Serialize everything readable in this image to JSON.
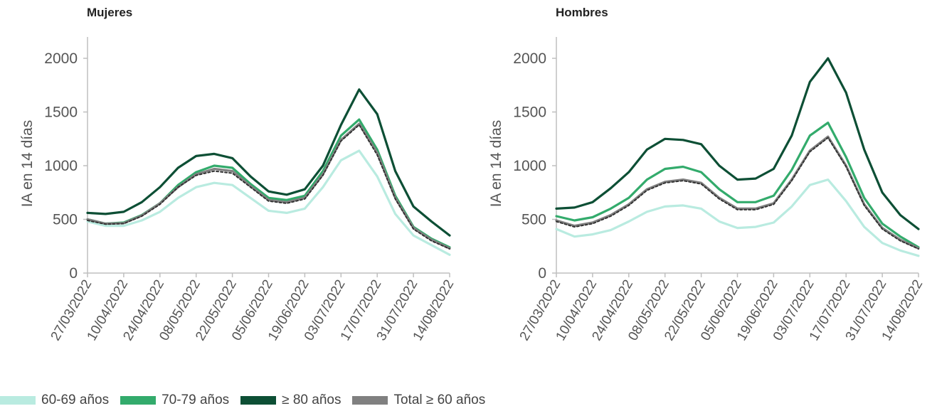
{
  "legend": [
    {
      "label": "60-69 años",
      "color": "#b9ebe0"
    },
    {
      "label": "70-79 años",
      "color": "#33ab6c"
    },
    {
      "label": "≥ 80 años",
      "color": "#0d4f35"
    },
    {
      "label": "Total ≥ 60 años",
      "color": "#808080"
    }
  ],
  "chart_data": [
    {
      "type": "line",
      "title": "Mujeres",
      "ylabel": "IA en 14 días",
      "xlabel": "",
      "ylim": [
        0,
        2200
      ],
      "yticks": [
        0,
        500,
        1000,
        1500,
        2000
      ],
      "x_ticks": [
        "27/03/2022",
        "10/04/2022",
        "24/04/2022",
        "08/05/2022",
        "22/05/2022",
        "05/06/2022",
        "19/06/2022",
        "03/07/2022",
        "17/07/2022",
        "31/07/2022",
        "14/08/2022"
      ],
      "x": [
        "27/03/2022",
        "03/04/2022",
        "10/04/2022",
        "17/04/2022",
        "24/04/2022",
        "01/05/2022",
        "08/05/2022",
        "15/05/2022",
        "22/05/2022",
        "29/05/2022",
        "05/06/2022",
        "12/06/2022",
        "19/06/2022",
        "26/06/2022",
        "03/07/2022",
        "10/07/2022",
        "17/07/2022",
        "24/07/2022",
        "31/07/2022",
        "07/08/2022",
        "14/08/2022"
      ],
      "series": [
        {
          "name": "60-69 años",
          "color": "#b9ebe0",
          "dash": false,
          "values": [
            480,
            440,
            440,
            490,
            570,
            700,
            800,
            840,
            820,
            700,
            580,
            560,
            600,
            800,
            1050,
            1140,
            900,
            550,
            350,
            260,
            170
          ]
        },
        {
          "name": "70-79 años",
          "color": "#33ab6c",
          "dash": false,
          "values": [
            500,
            460,
            470,
            540,
            650,
            820,
            940,
            1000,
            980,
            830,
            700,
            680,
            720,
            950,
            1280,
            1430,
            1150,
            720,
            430,
            320,
            240
          ]
        },
        {
          "name": "≥ 80 años",
          "color": "#0d4f35",
          "dash": false,
          "values": [
            560,
            550,
            570,
            660,
            800,
            980,
            1090,
            1110,
            1070,
            900,
            760,
            730,
            780,
            1000,
            1380,
            1710,
            1480,
            950,
            620,
            480,
            350
          ]
        },
        {
          "name": "Total ≥ 60 años",
          "color": "#808080",
          "dash": false,
          "values": [
            500,
            460,
            465,
            535,
            650,
            800,
            920,
            970,
            950,
            810,
            680,
            660,
            700,
            920,
            1240,
            1390,
            1120,
            700,
            420,
            310,
            230
          ]
        },
        {
          "name": "",
          "color": "#333333",
          "dash": true,
          "values": [
            490,
            455,
            460,
            530,
            640,
            800,
            910,
            950,
            930,
            800,
            670,
            650,
            690,
            910,
            1230,
            1380,
            1100,
            690,
            410,
            300,
            225
          ]
        }
      ]
    },
    {
      "type": "line",
      "title": "Hombres",
      "ylabel": "IA en 14 días",
      "xlabel": "",
      "ylim": [
        0,
        2200
      ],
      "yticks": [
        0,
        500,
        1000,
        1500,
        2000
      ],
      "x_ticks": [
        "27/03/2022",
        "10/04/2022",
        "24/04/2022",
        "08/05/2022",
        "22/05/2022",
        "05/06/2022",
        "19/06/2022",
        "03/07/2022",
        "17/07/2022",
        "31/07/2022",
        "14/08/2022"
      ],
      "x": [
        "27/03/2022",
        "03/04/2022",
        "10/04/2022",
        "17/04/2022",
        "24/04/2022",
        "01/05/2022",
        "08/05/2022",
        "15/05/2022",
        "22/05/2022",
        "29/05/2022",
        "05/06/2022",
        "12/06/2022",
        "19/06/2022",
        "26/06/2022",
        "03/07/2022",
        "10/07/2022",
        "17/07/2022",
        "24/07/2022",
        "31/07/2022",
        "07/08/2022",
        "14/08/2022"
      ],
      "series": [
        {
          "name": "60-69 años",
          "color": "#b9ebe0",
          "dash": false,
          "values": [
            410,
            340,
            360,
            400,
            480,
            570,
            620,
            630,
            600,
            480,
            420,
            430,
            470,
            620,
            820,
            870,
            670,
            430,
            280,
            210,
            160
          ]
        },
        {
          "name": "70-79 años",
          "color": "#33ab6c",
          "dash": false,
          "values": [
            530,
            490,
            520,
            600,
            700,
            870,
            970,
            990,
            940,
            780,
            660,
            660,
            720,
            960,
            1280,
            1400,
            1080,
            700,
            460,
            340,
            240
          ]
        },
        {
          "name": "≥ 80 años",
          "color": "#0d4f35",
          "dash": false,
          "values": [
            600,
            610,
            660,
            790,
            940,
            1150,
            1250,
            1240,
            1200,
            1000,
            870,
            880,
            970,
            1280,
            1780,
            2000,
            1680,
            1150,
            750,
            540,
            410
          ]
        },
        {
          "name": "Total ≥ 60 años",
          "color": "#808080",
          "dash": false,
          "values": [
            490,
            440,
            470,
            540,
            640,
            780,
            850,
            870,
            840,
            700,
            600,
            600,
            650,
            870,
            1140,
            1270,
            1000,
            640,
            420,
            310,
            230
          ]
        },
        {
          "name": "",
          "color": "#333333",
          "dash": true,
          "values": [
            480,
            430,
            460,
            530,
            630,
            770,
            840,
            860,
            830,
            690,
            590,
            590,
            640,
            860,
            1130,
            1260,
            990,
            630,
            410,
            300,
            225
          ]
        }
      ]
    }
  ]
}
